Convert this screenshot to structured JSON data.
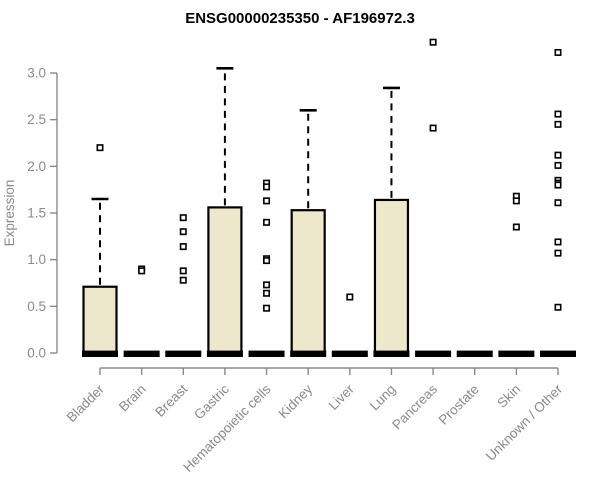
{
  "chart_data": {
    "type": "boxplot",
    "title": "ENSG00000235350 - AF196972.3",
    "xlabel": "",
    "ylabel": "Expression",
    "ylim": [
      0.0,
      3.0
    ],
    "y_ticks": [
      0.0,
      0.5,
      1.0,
      1.5,
      2.0,
      2.5,
      3.0
    ],
    "grid": false,
    "legend": "none",
    "categories": [
      "Bladder",
      "Brain",
      "Breast",
      "Gastric",
      "Hematopoietic cells",
      "Kidney",
      "Liver",
      "Lung",
      "Pancreas",
      "Prostate",
      "Skin",
      "Unknown / Other"
    ],
    "series": [
      {
        "name": "Bladder",
        "whisker_low": 0,
        "q1": 0,
        "median": 0,
        "q3": 0.71,
        "whisker_high": 1.65,
        "outliers": [
          2.2
        ]
      },
      {
        "name": "Brain",
        "whisker_low": 0,
        "q1": 0,
        "median": 0,
        "q3": 0,
        "whisker_high": 0,
        "outliers": [
          0.9,
          0.88
        ]
      },
      {
        "name": "Breast",
        "whisker_low": 0,
        "q1": 0,
        "median": 0,
        "q3": 0,
        "whisker_high": 0,
        "outliers": [
          1.45,
          1.3,
          1.14,
          0.88,
          0.78
        ]
      },
      {
        "name": "Gastric",
        "whisker_low": 0,
        "q1": 0,
        "median": 0,
        "q3": 1.56,
        "whisker_high": 3.05,
        "outliers": []
      },
      {
        "name": "Hematopoietic cells",
        "whisker_low": 0,
        "q1": 0,
        "median": 0,
        "q3": 0,
        "whisker_high": 0,
        "outliers": [
          1.82,
          1.78,
          1.63,
          1.4,
          1.01,
          0.99,
          0.73,
          0.64,
          0.48
        ]
      },
      {
        "name": "Kidney",
        "whisker_low": 0,
        "q1": 0,
        "median": 0,
        "q3": 1.53,
        "whisker_high": 2.6,
        "outliers": []
      },
      {
        "name": "Liver",
        "whisker_low": 0,
        "q1": 0,
        "median": 0,
        "q3": 0,
        "whisker_high": 0,
        "outliers": [
          0.6
        ]
      },
      {
        "name": "Lung",
        "whisker_low": 0,
        "q1": 0,
        "median": 0,
        "q3": 1.64,
        "whisker_high": 2.84,
        "outliers": []
      },
      {
        "name": "Pancreas",
        "whisker_low": 0,
        "q1": 0,
        "median": 0,
        "q3": 0,
        "whisker_high": 0,
        "outliers": [
          3.33,
          2.41
        ]
      },
      {
        "name": "Prostate",
        "whisker_low": 0,
        "q1": 0,
        "median": 0,
        "q3": 0,
        "whisker_high": 0,
        "outliers": []
      },
      {
        "name": "Skin",
        "whisker_low": 0,
        "q1": 0,
        "median": 0,
        "q3": 0,
        "whisker_high": 0,
        "outliers": [
          1.68,
          1.63,
          1.35
        ]
      },
      {
        "name": "Unknown / Other",
        "whisker_low": 0,
        "q1": 0,
        "median": 0,
        "q3": 0,
        "whisker_high": 0,
        "outliers": [
          3.22,
          2.56,
          2.45,
          2.12,
          2.01,
          1.85,
          1.82,
          1.8,
          1.61,
          1.19,
          1.07,
          0.49
        ]
      }
    ],
    "colors": {
      "box_fill": "#ede8cc",
      "box_stroke": "#000000",
      "median_color": "#000000",
      "whisker_color": "#000000",
      "outlier_stroke": "#000000",
      "axis_color": "#8a8a8a",
      "axis_text_color": "#8a8a8a",
      "title_color": "#000000",
      "background": "#ffffff"
    }
  }
}
